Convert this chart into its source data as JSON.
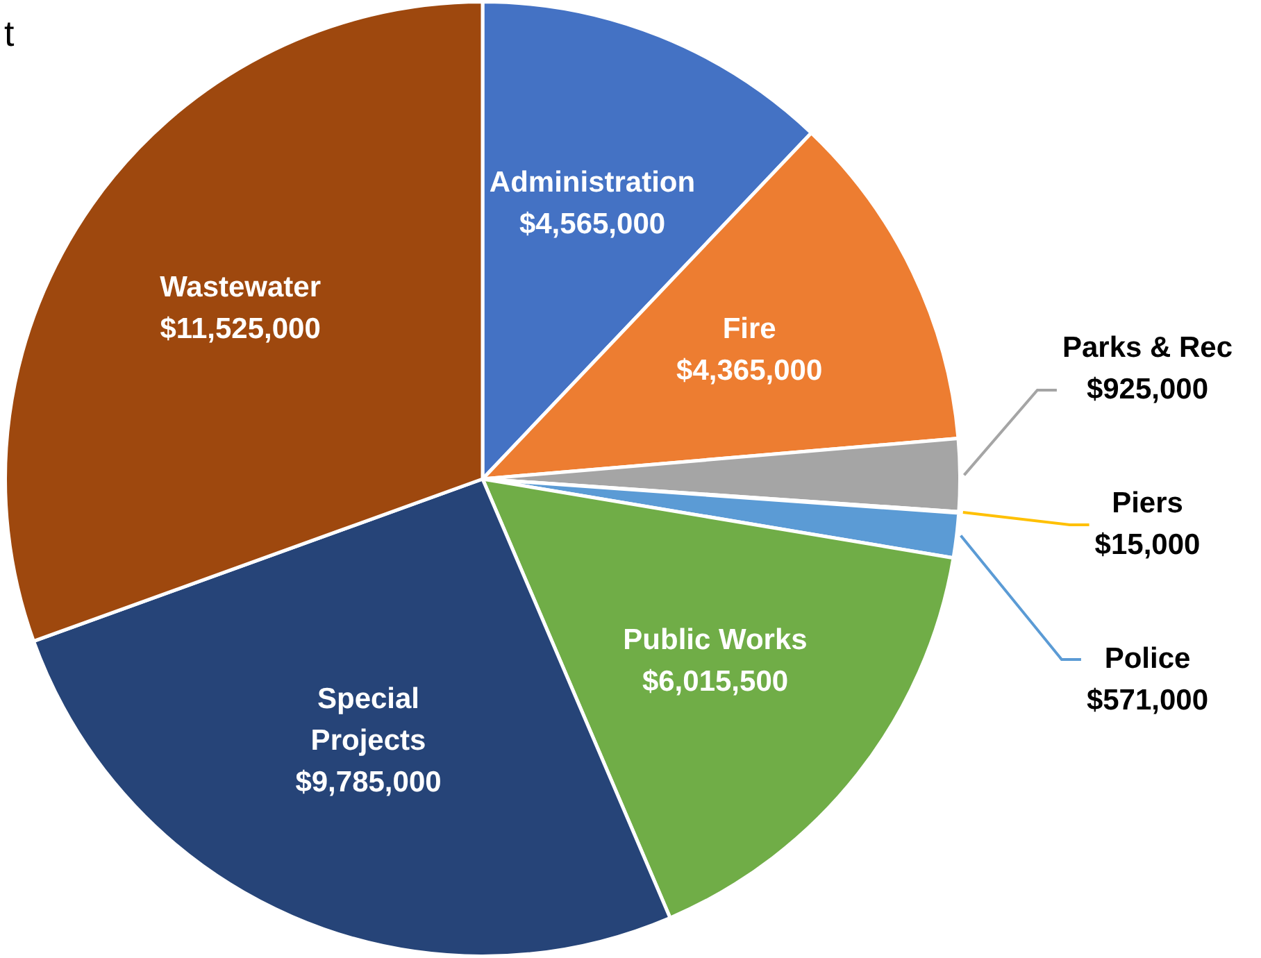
{
  "chart_data": {
    "type": "pie",
    "annotations": [
      "t"
    ],
    "categories": [
      "Administration",
      "Fire",
      "Parks & Rec",
      "Piers",
      "Police",
      "Public Works",
      "Special Projects",
      "Wastewater"
    ],
    "values": [
      4565000,
      4365000,
      925000,
      15000,
      571000,
      6015500,
      9785000,
      11525000
    ],
    "value_labels": [
      "$4,565,000",
      "$4,365,000",
      "$925,000",
      "$15,000",
      "$571,000",
      "$6,015,500",
      "$9,785,000",
      "$11,525,000"
    ],
    "colors": [
      "#4472c4",
      "#ed7d31",
      "#a5a5a5",
      "#ffc000",
      "#5b9bd5",
      "#70ad47",
      "#264478",
      "#9e480e"
    ],
    "legend": false
  }
}
